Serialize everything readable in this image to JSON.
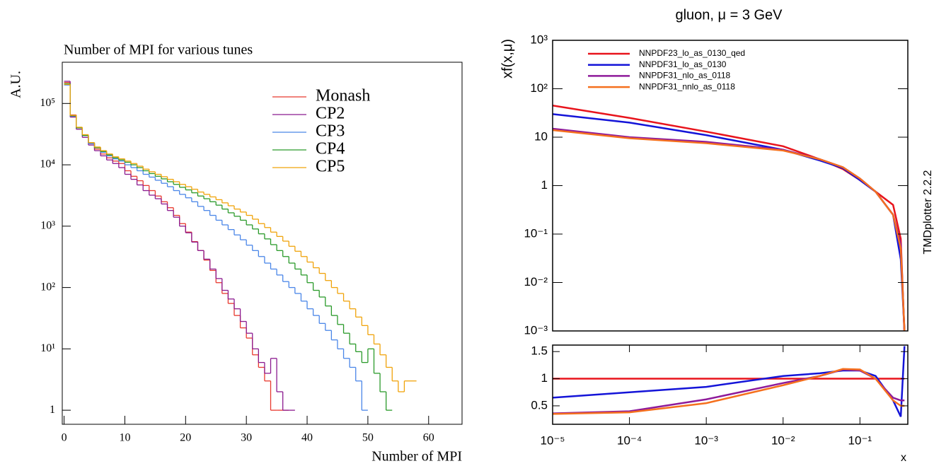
{
  "chart_data": [
    {
      "type": "histogram",
      "title": "Number of MPI for various tunes",
      "x_label": "Number of MPI",
      "y_label": "A.U.",
      "log_y": true,
      "xlim": [
        -0.3,
        65.5
      ],
      "ylim": [
        0.59,
        470000
      ],
      "xticks": [
        0,
        10,
        20,
        30,
        40,
        50,
        60
      ],
      "yticks": [
        1,
        {
          "value": 10,
          "label": "10¹"
        },
        {
          "value": 100,
          "label": "10²"
        },
        {
          "value": 1000,
          "label": "10³"
        },
        {
          "value": 10000,
          "label": "10⁴"
        },
        {
          "value": 100000,
          "label": "10⁵"
        }
      ],
      "bins": [
        0,
        1,
        2,
        3,
        4,
        5,
        6,
        7,
        8,
        9,
        10,
        11,
        12,
        13,
        14,
        15,
        16,
        17,
        18,
        19,
        20,
        21,
        22,
        23,
        24,
        25,
        26,
        27,
        28,
        29,
        30,
        31,
        32,
        33,
        34,
        35,
        36,
        37,
        38,
        39,
        40,
        41,
        42,
        43,
        44,
        45,
        46,
        47,
        48,
        49,
        50,
        51,
        52,
        53,
        54,
        55,
        56,
        57,
        58
      ],
      "series": [
        {
          "name": "Monash",
          "color": "#e8392e",
          "values": [
            220000,
            65000,
            40000,
            30000,
            22000,
            18000,
            15000,
            13000,
            11500,
            10500,
            8000,
            6500,
            5500,
            4600,
            3800,
            3100,
            2500,
            2000,
            1500,
            1100,
            800,
            560,
            400,
            280,
            190,
            120,
            80,
            55,
            35,
            22,
            15,
            8,
            5,
            3,
            1,
            1,
            1,
            null,
            null,
            null,
            null,
            null,
            null,
            null,
            null,
            null,
            null,
            null,
            null,
            null,
            null,
            null,
            null,
            null,
            null,
            null,
            null,
            null
          ]
        },
        {
          "name": "CP2",
          "color": "#8b1a8f",
          "values": [
            230000,
            60000,
            38000,
            28000,
            21000,
            17000,
            14000,
            12000,
            10500,
            9000,
            7000,
            5800,
            4700,
            3800,
            3200,
            2800,
            2300,
            1800,
            1400,
            1000,
            780,
            550,
            400,
            290,
            200,
            140,
            90,
            65,
            45,
            28,
            18,
            10,
            6,
            4,
            7,
            2,
            1,
            1,
            null,
            null,
            null,
            null,
            null,
            null,
            null,
            null,
            null,
            null,
            null,
            null,
            null,
            null,
            null,
            null,
            null,
            null,
            null,
            null
          ]
        },
        {
          "name": "CP3",
          "color": "#4a86e8",
          "values": [
            200000,
            62000,
            40000,
            30000,
            22000,
            19000,
            16000,
            14000,
            12500,
            11500,
            10000,
            9000,
            8000,
            7000,
            6300,
            5600,
            5000,
            4400,
            3800,
            3300,
            2900,
            2500,
            2100,
            1800,
            1500,
            1250,
            1050,
            880,
            720,
            600,
            490,
            400,
            320,
            250,
            200,
            160,
            125,
            100,
            80,
            60,
            45,
            35,
            26,
            20,
            14,
            10,
            7,
            5,
            3,
            1,
            null,
            null,
            null,
            null,
            null,
            null,
            null,
            null
          ]
        },
        {
          "name": "CP4",
          "color": "#2a9a2a",
          "values": [
            210000,
            63000,
            40000,
            30000,
            23000,
            19000,
            16500,
            14500,
            13000,
            12000,
            11000,
            10000,
            9000,
            8000,
            7200,
            6500,
            5900,
            5300,
            4800,
            4300,
            3900,
            3500,
            3100,
            2800,
            2500,
            2200,
            1900,
            1650,
            1450,
            1250,
            1050,
            900,
            750,
            620,
            500,
            400,
            320,
            250,
            200,
            160,
            120,
            90,
            70,
            50,
            35,
            25,
            18,
            12,
            9,
            6,
            10,
            4,
            2,
            1,
            null,
            null,
            null,
            null
          ]
        },
        {
          "name": "CP5",
          "color": "#f0a30a",
          "values": [
            205000,
            64000,
            41000,
            31000,
            23000,
            19500,
            17000,
            15000,
            13500,
            12500,
            11500,
            10500,
            9500,
            8500,
            7700,
            7000,
            6400,
            5800,
            5300,
            4800,
            4400,
            4000,
            3600,
            3300,
            3000,
            2700,
            2400,
            2150,
            1900,
            1700,
            1500,
            1300,
            1100,
            950,
            800,
            680,
            570,
            470,
            390,
            320,
            260,
            210,
            170,
            130,
            100,
            80,
            60,
            45,
            33,
            24,
            17,
            12,
            8,
            5,
            3,
            2,
            3,
            3
          ]
        }
      ]
    },
    {
      "type": "line",
      "title": "gluon, μ = 3 GeV",
      "y_label": "xf(x,μ)",
      "annotation": "TMDplotter 2.2.2",
      "log_x": true,
      "log_y": true,
      "xlim": [
        1e-05,
        0.42
      ],
      "ylim": [
        0.001,
        1000
      ],
      "yticks": [
        {
          "value": 0.001,
          "label": "10⁻³"
        },
        {
          "value": 0.01,
          "label": "10⁻²"
        },
        {
          "value": 0.1,
          "label": "10⁻¹"
        },
        1,
        10,
        {
          "value": 100,
          "label": "10²"
        },
        {
          "value": 1000,
          "label": "10³"
        }
      ],
      "x": [
        1e-05,
        0.0001,
        0.001,
        0.01,
        0.03,
        0.06,
        0.1,
        0.16,
        0.27,
        0.34,
        0.38
      ],
      "series": [
        {
          "name": "NNPDF23_lo_as_0130_qed",
          "color": "#e8141c",
          "values": [
            45,
            25,
            13,
            6.5,
            3.5,
            2.2,
            1.3,
            0.75,
            0.4,
            0.08,
            0.0008
          ]
        },
        {
          "name": "NNPDF31_lo_as_0130",
          "color": "#1414d8",
          "values": [
            30,
            20,
            11,
            5.5,
            3.3,
            2.3,
            1.3,
            0.75,
            0.25,
            0.03,
            0.001
          ]
        },
        {
          "name": "NNPDF31_nlo_as_0118",
          "color": "#8e1a9a",
          "values": [
            15,
            10,
            8,
            5.5,
            3.5,
            2.4,
            1.4,
            0.75,
            0.25,
            0.06,
            0.001
          ]
        },
        {
          "name": "NNPDF31_nnlo_as_0118",
          "color": "#f5701e",
          "values": [
            14,
            9.5,
            7.5,
            5.3,
            3.5,
            2.4,
            1.4,
            0.75,
            0.25,
            0.05,
            0.001
          ]
        }
      ]
    },
    {
      "type": "line",
      "x_label": "x",
      "log_x": true,
      "xlim": [
        1e-05,
        0.42
      ],
      "ylim": [
        0.16,
        1.62
      ],
      "xticks": [
        {
          "value": 1e-05,
          "label": "10⁻⁵"
        },
        {
          "value": 0.0001,
          "label": "10⁻⁴"
        },
        {
          "value": 0.001,
          "label": "10⁻³"
        },
        {
          "value": 0.01,
          "label": "10⁻²"
        },
        {
          "value": 0.1,
          "label": "10⁻¹"
        }
      ],
      "yticks": [
        0.5,
        1,
        1.5
      ],
      "x": [
        1e-05,
        0.0001,
        0.001,
        0.01,
        0.03,
        0.06,
        0.1,
        0.16,
        0.27,
        0.34,
        0.38
      ],
      "series": [
        {
          "color": "#e8141c",
          "values": [
            1,
            1,
            1,
            1,
            1,
            1,
            1,
            1,
            1,
            1,
            1
          ]
        },
        {
          "color": "#1414d8",
          "values": [
            0.65,
            0.75,
            0.85,
            1.05,
            1.1,
            1.15,
            1.15,
            1.05,
            0.6,
            0.3,
            1.6
          ]
        },
        {
          "color": "#8e1a9a",
          "values": [
            0.36,
            0.4,
            0.62,
            0.92,
            1.05,
            1.17,
            1.15,
            1.0,
            0.65,
            0.6,
            0.6
          ]
        },
        {
          "color": "#f5701e",
          "values": [
            0.35,
            0.38,
            0.55,
            0.88,
            1.05,
            1.18,
            1.17,
            1.0,
            0.6,
            0.5,
            0.5
          ]
        }
      ]
    }
  ]
}
